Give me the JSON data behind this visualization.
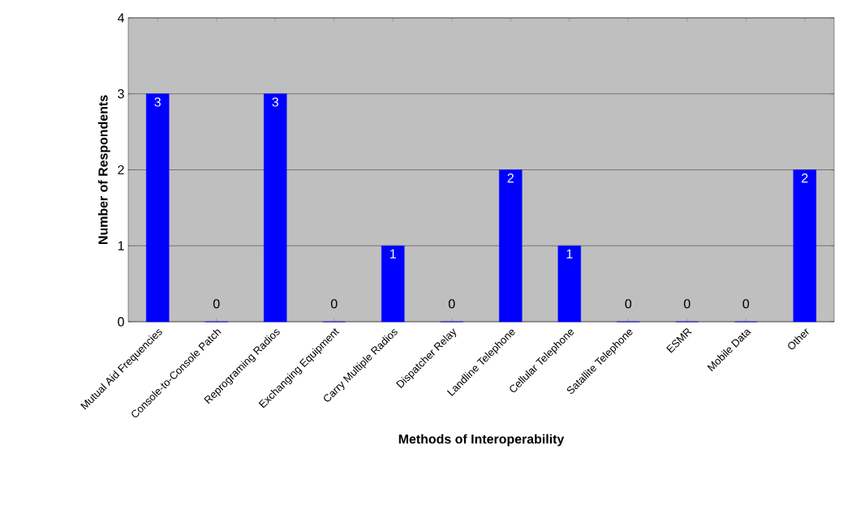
{
  "chart_data": {
    "type": "bar",
    "xlabel": "Methods of Interoperability",
    "ylabel": "Number of Respondents",
    "categories": [
      "Mutual Aid Frequencies",
      "Console-to-Console Patch",
      "Reprograming Radios",
      "Exchanging Equipment",
      "Carry Multiple Radios",
      "Dispatcher Relay",
      "Landline Telephone",
      "Cellular Telephone",
      "Satallite Telephone",
      "ESMR",
      "Mobile Data",
      "Other"
    ],
    "values": [
      3,
      0,
      3,
      0,
      1,
      0,
      2,
      1,
      0,
      0,
      0,
      2
    ],
    "color": "#0000ff",
    "ylim": [
      0,
      4
    ],
    "yticks": [
      0,
      1,
      2,
      3,
      4
    ],
    "grid": "y",
    "data_labels": true
  }
}
